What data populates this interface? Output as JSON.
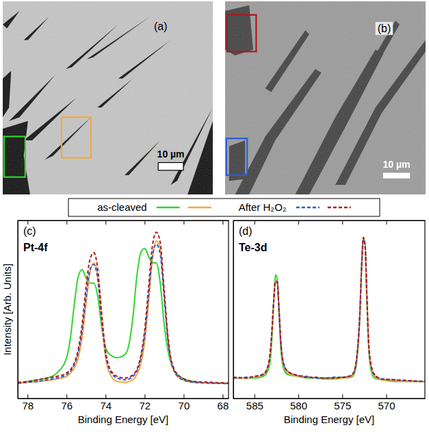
{
  "images": [
    {
      "label": "(a)",
      "scale_bar": "10 µm"
    },
    {
      "label": "(b)",
      "scale_bar": "10 µm"
    }
  ],
  "shared_legend": [
    {
      "label": "as-cleaved",
      "line_style": "solid",
      "colors": [
        "#2fd62f",
        "#f2a93a"
      ]
    },
    {
      "label": "After H₂O₂",
      "line_style": "dashed",
      "colors": [
        "#2a5bd7",
        "#b5151b"
      ]
    }
  ],
  "chart_data": [
    {
      "type": "line",
      "panel": "(c)",
      "title": "Pt-4f",
      "x_label": "Binding Energy [eV]",
      "y_label": "Intensity [Arb. Units]",
      "xlim": [
        78.5,
        67.7
      ],
      "xticks": [
        78,
        76,
        74,
        72,
        70,
        68
      ],
      "ylim": [
        0,
        1.05
      ],
      "tick_labels": "x",
      "x": [
        78.5,
        78,
        77.5,
        77,
        76.5,
        76,
        75.8,
        75.6,
        75.4,
        75.2,
        75,
        74.8,
        74.6,
        74.4,
        74.2,
        74,
        73.8,
        73.4,
        73,
        72.8,
        72.6,
        72.4,
        72.2,
        72,
        71.8,
        71.6,
        71.4,
        71.2,
        71,
        70.8,
        70.6,
        70.2,
        69.5,
        68.5,
        67.7
      ],
      "series": [
        {
          "color": "#2fd62f",
          "line_style": "solid",
          "values": [
            0.09,
            0.1,
            0.11,
            0.12,
            0.15,
            0.24,
            0.36,
            0.56,
            0.72,
            0.76,
            0.71,
            0.68,
            0.68,
            0.6,
            0.42,
            0.3,
            0.26,
            0.24,
            0.26,
            0.32,
            0.48,
            0.72,
            0.86,
            0.885,
            0.84,
            0.8,
            0.8,
            0.68,
            0.44,
            0.28,
            0.19,
            0.13,
            0.1,
            0.09,
            0.09
          ]
        },
        {
          "color": "#f2a93a",
          "line_style": "solid",
          "values": [
            0.09,
            0.095,
            0.1,
            0.105,
            0.115,
            0.13,
            0.15,
            0.18,
            0.24,
            0.36,
            0.56,
            0.74,
            0.8,
            0.72,
            0.46,
            0.24,
            0.15,
            0.1,
            0.095,
            0.1,
            0.11,
            0.14,
            0.2,
            0.33,
            0.56,
            0.82,
            0.93,
            0.88,
            0.62,
            0.34,
            0.19,
            0.12,
            0.095,
            0.09,
            0.088
          ]
        },
        {
          "color": "#2a5bd7",
          "line_style": "dashed",
          "values": [
            0.09,
            0.095,
            0.1,
            0.11,
            0.12,
            0.14,
            0.16,
            0.2,
            0.27,
            0.4,
            0.6,
            0.76,
            0.79,
            0.7,
            0.46,
            0.26,
            0.17,
            0.12,
            0.11,
            0.115,
            0.13,
            0.16,
            0.23,
            0.37,
            0.6,
            0.84,
            0.91,
            0.85,
            0.6,
            0.34,
            0.2,
            0.12,
            0.095,
            0.09,
            0.088
          ]
        },
        {
          "color": "#b5151b",
          "line_style": "dashed",
          "values": [
            0.095,
            0.1,
            0.11,
            0.12,
            0.13,
            0.15,
            0.17,
            0.21,
            0.29,
            0.44,
            0.66,
            0.82,
            0.86,
            0.76,
            0.5,
            0.28,
            0.18,
            0.13,
            0.12,
            0.125,
            0.14,
            0.17,
            0.25,
            0.4,
            0.65,
            0.9,
            0.98,
            0.92,
            0.64,
            0.36,
            0.21,
            0.13,
            0.1,
            0.095,
            0.09
          ]
        }
      ]
    },
    {
      "type": "line",
      "panel": "(d)",
      "title": "Te-3d",
      "x_label": "Binding Energy [eV]",
      "xlim": [
        587.4,
        565.6
      ],
      "xticks": [
        585,
        580,
        575,
        570
      ],
      "ylim": [
        0,
        1.05
      ],
      "tick_labels": "x",
      "x": [
        587.4,
        587,
        586,
        585,
        584,
        583.5,
        583.2,
        583,
        582.8,
        582.6,
        582.4,
        582.2,
        582,
        581.7,
        581.2,
        580,
        579,
        578,
        577,
        576,
        575,
        574,
        573.6,
        573.3,
        573,
        572.8,
        572.6,
        572.4,
        572.2,
        572,
        571.7,
        571.3,
        570.5,
        569,
        567.5,
        565.6
      ],
      "series": [
        {
          "color": "#2fd62f",
          "line_style": "solid",
          "values": [
            0.12,
            0.12,
            0.12,
            0.12,
            0.13,
            0.16,
            0.22,
            0.36,
            0.58,
            0.73,
            0.7,
            0.5,
            0.3,
            0.18,
            0.14,
            0.13,
            0.12,
            0.12,
            0.115,
            0.115,
            0.12,
            0.125,
            0.15,
            0.24,
            0.48,
            0.78,
            0.95,
            0.9,
            0.58,
            0.3,
            0.16,
            0.12,
            0.11,
            0.1,
            0.1,
            0.1
          ]
        },
        {
          "color": "#f2a93a",
          "line_style": "solid",
          "values": [
            0.12,
            0.12,
            0.12,
            0.125,
            0.14,
            0.18,
            0.26,
            0.4,
            0.58,
            0.7,
            0.69,
            0.52,
            0.33,
            0.2,
            0.15,
            0.13,
            0.125,
            0.12,
            0.12,
            0.12,
            0.12,
            0.13,
            0.16,
            0.26,
            0.5,
            0.78,
            0.95,
            0.9,
            0.6,
            0.32,
            0.18,
            0.13,
            0.11,
            0.105,
            0.1,
            0.1
          ]
        },
        {
          "color": "#2a5bd7",
          "line_style": "dashed",
          "values": [
            0.125,
            0.12,
            0.125,
            0.13,
            0.145,
            0.18,
            0.27,
            0.41,
            0.58,
            0.69,
            0.68,
            0.52,
            0.34,
            0.21,
            0.16,
            0.135,
            0.13,
            0.12,
            0.12,
            0.125,
            0.125,
            0.135,
            0.165,
            0.27,
            0.51,
            0.78,
            0.94,
            0.89,
            0.6,
            0.33,
            0.19,
            0.135,
            0.115,
            0.11,
            0.105,
            0.1
          ]
        },
        {
          "color": "#b5151b",
          "line_style": "dashed",
          "values": [
            0.12,
            0.125,
            0.12,
            0.13,
            0.14,
            0.185,
            0.27,
            0.4,
            0.57,
            0.69,
            0.69,
            0.53,
            0.34,
            0.21,
            0.16,
            0.135,
            0.125,
            0.125,
            0.12,
            0.12,
            0.125,
            0.135,
            0.17,
            0.27,
            0.5,
            0.77,
            0.95,
            0.9,
            0.61,
            0.33,
            0.19,
            0.14,
            0.115,
            0.11,
            0.105,
            0.1
          ]
        }
      ]
    }
  ]
}
